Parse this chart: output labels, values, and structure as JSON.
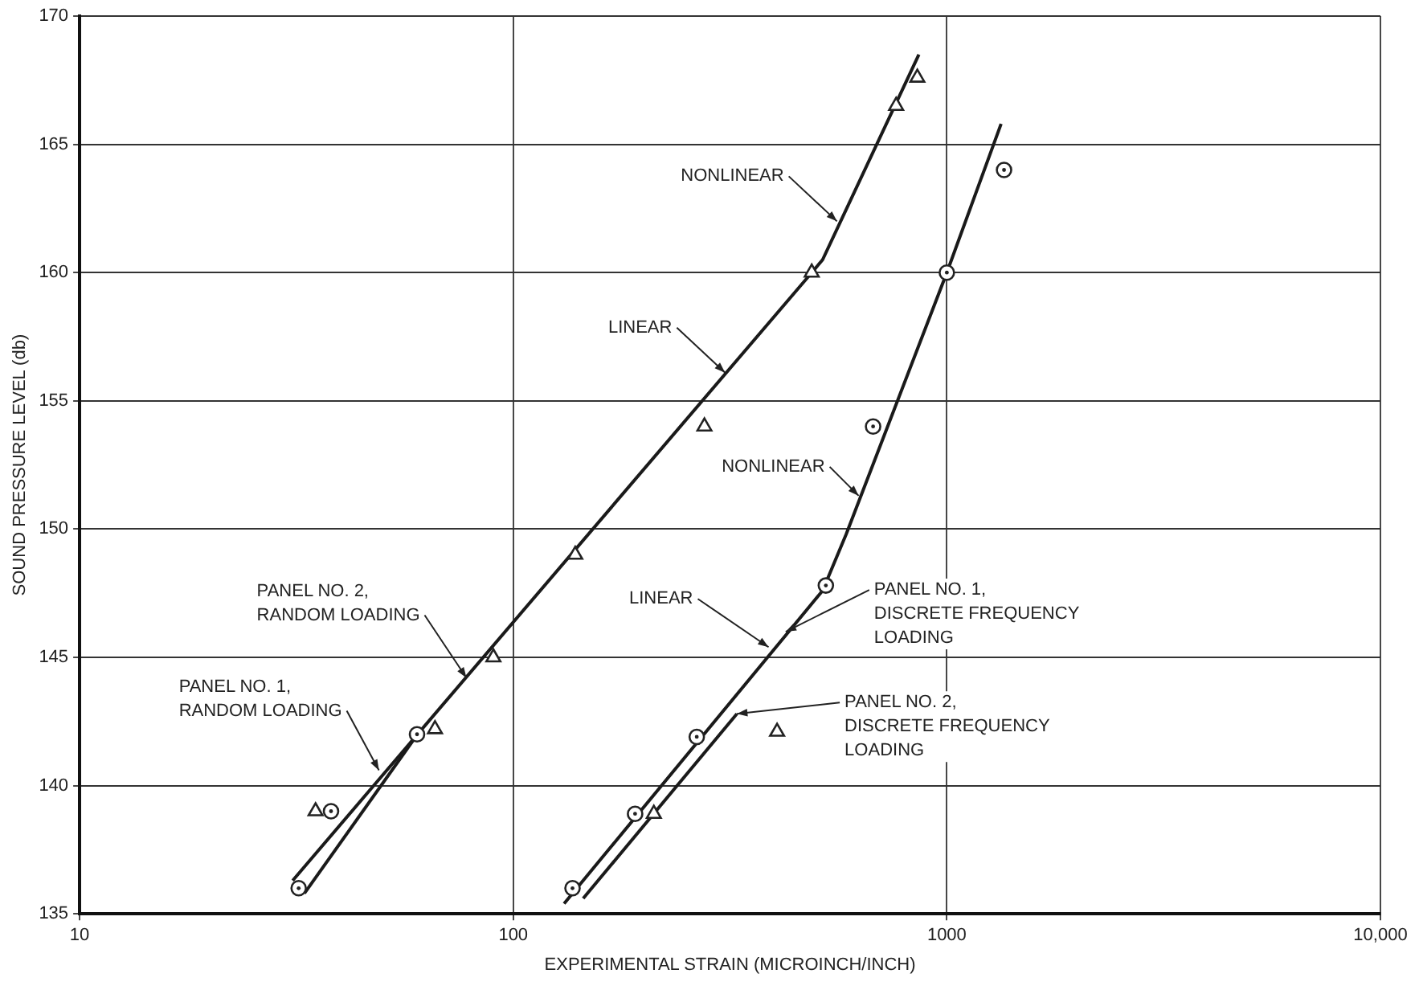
{
  "chart_data": {
    "type": "scatter",
    "xlabel": "EXPERIMENTAL STRAIN (MICROINCH/INCH)",
    "ylabel": "SOUND PRESSURE LEVEL (db)",
    "log": "x",
    "grid": true,
    "legend": false,
    "xlim": [
      10,
      10000
    ],
    "xticks": [
      10,
      100,
      1000,
      {
        "value": 10000,
        "label": "10,000"
      }
    ],
    "ylim": [
      135,
      170
    ],
    "yticks": [
      135,
      140,
      145,
      150,
      155,
      160,
      165,
      170
    ],
    "series": [
      {
        "type": "scatter",
        "marker": "circle",
        "color": "#222222",
        "x": [
          32,
          38,
          60,
          137,
          191,
          265,
          526,
          676,
          1000,
          1355
        ],
        "values": [
          136,
          139,
          142,
          136,
          138.9,
          141.9,
          147.8,
          154,
          160,
          164
        ]
      },
      {
        "type": "scatter",
        "marker": "triangle",
        "color": "#222222",
        "x": [
          35,
          66,
          90,
          139,
          276,
          488,
          764,
          855,
          211,
          406
        ],
        "values": [
          139,
          142.2,
          145,
          149,
          154,
          160,
          166.5,
          167.6,
          138.9,
          142.1
        ]
      },
      {
        "type": "line",
        "color": "#1a1a1a",
        "x": [
          31,
          488,
          517,
          569,
          862
        ],
        "values": [
          136.3,
          160,
          160.5,
          162,
          168.5
        ]
      },
      {
        "type": "line",
        "color": "#1a1a1a",
        "x": [
          33,
          59
        ],
        "values": [
          135.8,
          141.8
        ]
      },
      {
        "type": "line",
        "color": "#1a1a1a",
        "x": [
          131,
          517,
          586,
          1000,
          1334
        ],
        "values": [
          135.4,
          147.6,
          149.8,
          160,
          165.8
        ]
      },
      {
        "type": "line",
        "color": "#1a1a1a",
        "x": [
          145,
          328
        ],
        "values": [
          135.6,
          142.8
        ]
      }
    ],
    "annotations": [
      {
        "text": "NONLINEAR",
        "x": 558,
        "y": 162
      },
      {
        "text": "LINEAR",
        "x": 308,
        "y": 156.1
      },
      {
        "text": "NONLINEAR",
        "x": 626,
        "y": 151.3
      },
      {
        "text": "LINEAR",
        "x": 388,
        "y": 145.4
      },
      {
        "text": "PANEL NO. 1,\nDISCRETE FREQUENCY\nLOADING",
        "x": 425,
        "y": 146
      },
      {
        "text": "PANEL NO. 2,\nDISCRETE FREQUENCY\nLOADING",
        "x": 328,
        "y": 142.8
      },
      {
        "text": "PANEL NO. 2,\nRANDOM LOADING",
        "x": 78,
        "y": 144.2
      },
      {
        "text": "PANEL NO. 1,\nRANDOM LOADING",
        "x": 49,
        "y": 140.6
      }
    ]
  }
}
